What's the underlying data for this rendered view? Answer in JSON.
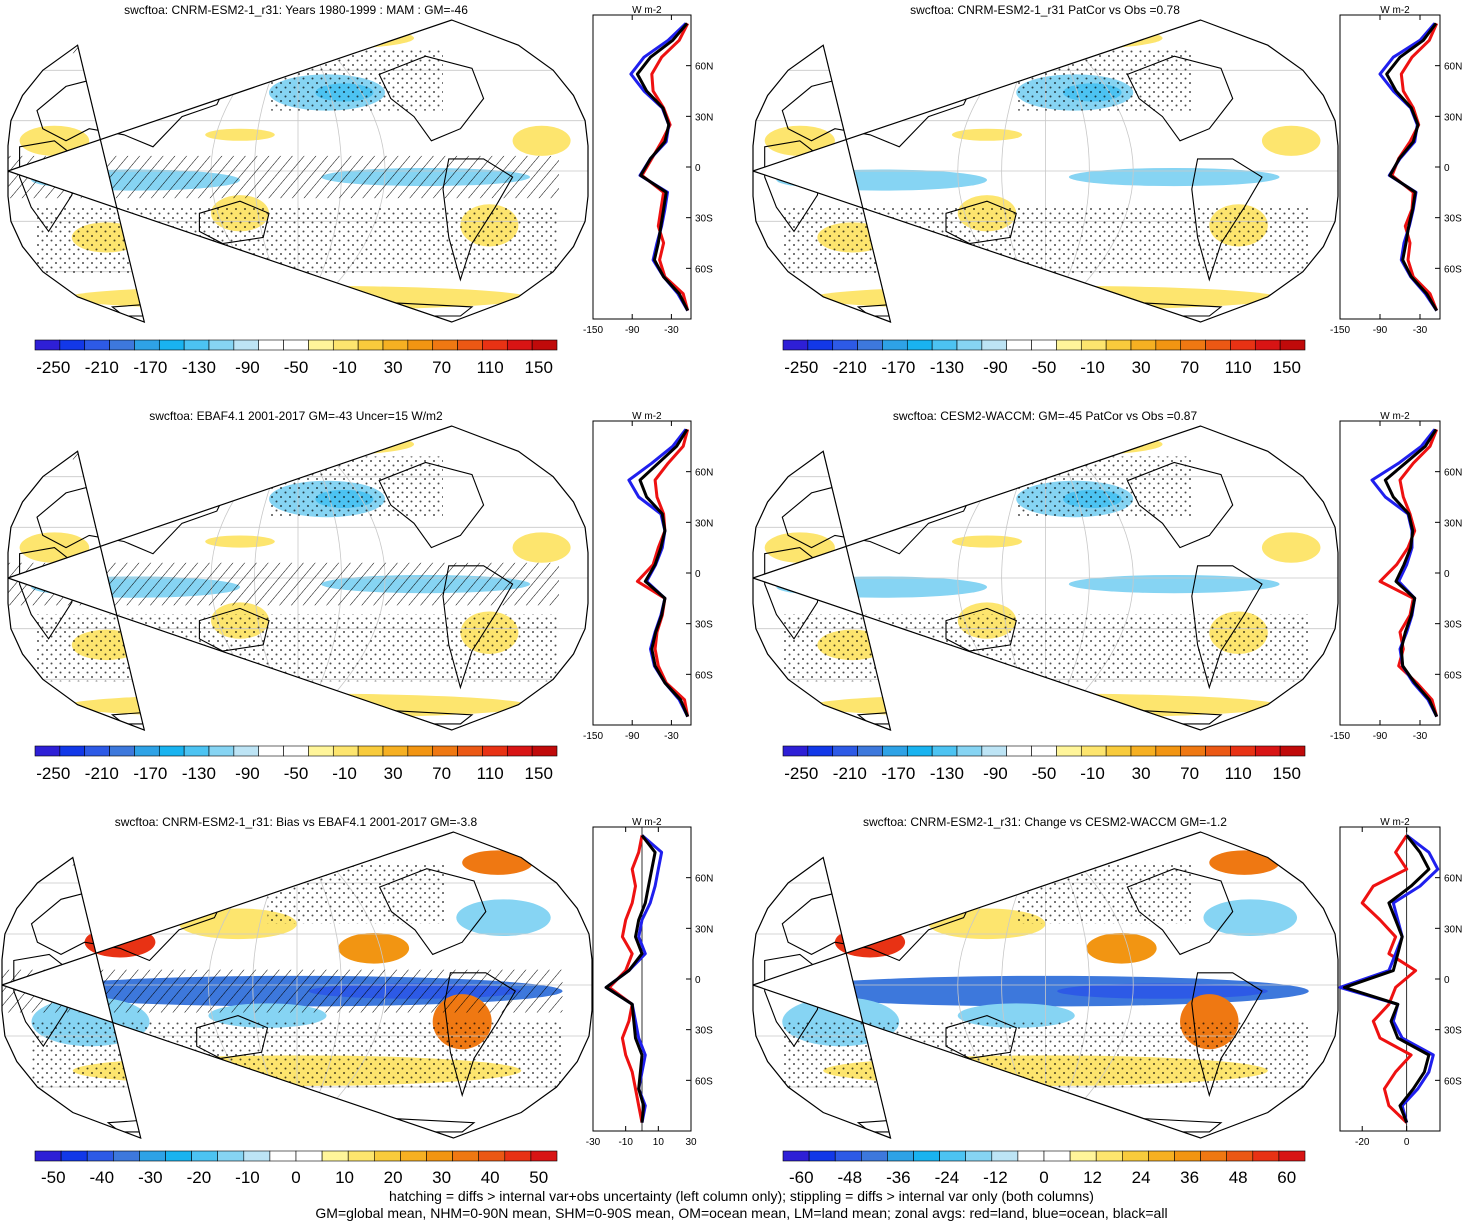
{
  "footer": {
    "line1": "hatching = diffs > internal var+obs uncertainty (left column only); stippling = diffs > internal var only (both columns)",
    "line2": "GM=global mean, NHM=0-90N mean, SHM=0-90S mean, OM=ocean mean, LM=land mean; zonal avgs: red=land, blue=ocean, black=all"
  },
  "colors": {
    "land": "#ee1111",
    "ocean": "#1f1fee",
    "all": "#000000",
    "outline": "#000000"
  },
  "icons": [
    "contour-map-robinson",
    "hatching-pattern",
    "stippling-pattern"
  ],
  "chart_data": [
    {
      "id": "model",
      "type": "heatmap",
      "projection": "robinson",
      "title": "swcftoa: CNRM-ESM2-1_r31: Years 1980-1999 : MAM : GM=-46",
      "colorbar": {
        "labels": [
          "-250",
          "-210",
          "-170",
          "-130",
          "-90",
          "-50",
          "-10",
          "30",
          "70",
          "110",
          "150"
        ],
        "scheme": "abs"
      },
      "zonal": {
        "units": "W m-2",
        "xticks": [
          "-150",
          "-90",
          "-30"
        ],
        "xlim": [
          -150,
          0
        ],
        "yticks": [
          "60N",
          "30N",
          "0",
          "30S",
          "60S"
        ],
        "ylim": [
          -90,
          90
        ],
        "lat": [
          -85,
          -75,
          -65,
          -55,
          -45,
          -35,
          -25,
          -15,
          -5,
          5,
          15,
          25,
          35,
          45,
          55,
          65,
          75,
          85
        ],
        "series": [
          {
            "color": "red",
            "values": [
              -5,
              -12,
              -40,
              -48,
              -42,
              -50,
              -46,
              -42,
              -75,
              -60,
              -45,
              -32,
              -42,
              -58,
              -60,
              -45,
              -18,
              -5
            ]
          },
          {
            "color": "blue",
            "values": [
              -5,
              -20,
              -42,
              -58,
              -52,
              -45,
              -40,
              -36,
              -78,
              -62,
              -38,
              -34,
              -44,
              -72,
              -92,
              -72,
              -35,
              -8
            ]
          },
          {
            "color": "black",
            "values": [
              -5,
              -18,
              -42,
              -56,
              -50,
              -46,
              -42,
              -38,
              -77,
              -62,
              -40,
              -34,
              -43,
              -68,
              -82,
              -62,
              -28,
              -6
            ]
          }
        ]
      }
    },
    {
      "id": "model-patcor",
      "type": "heatmap",
      "projection": "robinson",
      "title": "swcftoa: CNRM-ESM2-1_r31 PatCor vs Obs =0.78",
      "colorbar": {
        "labels": [
          "-250",
          "-210",
          "-170",
          "-130",
          "-90",
          "-50",
          "-10",
          "30",
          "70",
          "110",
          "150"
        ],
        "scheme": "abs"
      },
      "zonal": {
        "units": "W m-2",
        "xticks": [
          "-150",
          "-90",
          "-30"
        ],
        "xlim": [
          -150,
          0
        ],
        "yticks": [
          "60N",
          "30N",
          "0",
          "30S",
          "60S"
        ],
        "ylim": [
          -90,
          90
        ],
        "lat": [
          -85,
          -75,
          -65,
          -55,
          -45,
          -35,
          -25,
          -15,
          -5,
          5,
          15,
          25,
          35,
          45,
          55,
          65,
          75,
          85
        ],
        "series": [
          {
            "color": "red",
            "values": [
              -5,
              -15,
              -40,
              -48,
              -45,
              -52,
              -42,
              -40,
              -72,
              -62,
              -45,
              -32,
              -40,
              -55,
              -58,
              -42,
              -16,
              -5
            ]
          },
          {
            "color": "blue",
            "values": [
              -5,
              -22,
              -44,
              -58,
              -54,
              -46,
              -40,
              -36,
              -76,
              -60,
              -38,
              -34,
              -44,
              -70,
              -90,
              -70,
              -30,
              -8
            ]
          },
          {
            "color": "black",
            "values": [
              -5,
              -20,
              -43,
              -56,
              -51,
              -47,
              -41,
              -37,
              -75,
              -61,
              -40,
              -33,
              -43,
              -66,
              -80,
              -60,
              -25,
              -6
            ]
          }
        ]
      }
    },
    {
      "id": "obs",
      "type": "heatmap",
      "projection": "robinson",
      "title": "swcftoa: EBAF4.1 2001-2017 GM=-43 Uncer=15 W/m2",
      "colorbar": {
        "labels": [
          "-250",
          "-210",
          "-170",
          "-130",
          "-90",
          "-50",
          "-10",
          "30",
          "70",
          "110",
          "150"
        ],
        "scheme": "abs"
      },
      "zonal": {
        "units": "W m-2",
        "xticks": [
          "-150",
          "-90",
          "-30"
        ],
        "xlim": [
          -150,
          0
        ],
        "yticks": [
          "60N",
          "30N",
          "0",
          "30S",
          "60S"
        ],
        "ylim": [
          -90,
          90
        ],
        "lat": [
          -85,
          -75,
          -65,
          -55,
          -45,
          -35,
          -25,
          -15,
          -5,
          5,
          15,
          25,
          35,
          45,
          55,
          65,
          75,
          85
        ],
        "series": [
          {
            "color": "red",
            "values": [
              -5,
              -10,
              -38,
              -50,
              -55,
              -52,
              -44,
              -40,
              -82,
              -58,
              -50,
              -40,
              -42,
              -52,
              -55,
              -35,
              -12,
              -5
            ]
          },
          {
            "color": "blue",
            "values": [
              -5,
              -18,
              -40,
              -56,
              -62,
              -55,
              -46,
              -40,
              -68,
              -54,
              -44,
              -40,
              -46,
              -80,
              -95,
              -60,
              -28,
              -8
            ]
          },
          {
            "color": "black",
            "values": [
              -5,
              -16,
              -40,
              -55,
              -60,
              -54,
              -45,
              -40,
              -70,
              -55,
              -46,
              -40,
              -44,
              -68,
              -78,
              -50,
              -22,
              -6
            ]
          }
        ]
      }
    },
    {
      "id": "ref-model",
      "type": "heatmap",
      "projection": "robinson",
      "title": "swcftoa: CESM2-WACCM: GM=-45 PatCor vs Obs =0.87",
      "colorbar": {
        "labels": [
          "-250",
          "-210",
          "-170",
          "-130",
          "-90",
          "-50",
          "-10",
          "30",
          "70",
          "110",
          "150"
        ],
        "scheme": "abs"
      },
      "zonal": {
        "units": "W m-2",
        "xticks": [
          "-150",
          "-90",
          "-30"
        ],
        "xlim": [
          -150,
          0
        ],
        "yticks": [
          "60N",
          "30N",
          "0",
          "30S",
          "60S"
        ],
        "ylim": [
          -90,
          90
        ],
        "lat": [
          -85,
          -75,
          -65,
          -55,
          -45,
          -35,
          -25,
          -15,
          -5,
          5,
          15,
          25,
          35,
          45,
          55,
          65,
          75,
          85
        ],
        "series": [
          {
            "color": "red",
            "values": [
              -5,
              -12,
              -35,
              -62,
              -55,
              -60,
              -45,
              -40,
              -90,
              -65,
              -48,
              -38,
              -45,
              -55,
              -60,
              -40,
              -15,
              -5
            ]
          },
          {
            "color": "blue",
            "values": [
              -5,
              -18,
              -40,
              -56,
              -60,
              -50,
              -42,
              -38,
              -62,
              -50,
              -42,
              -42,
              -48,
              -82,
              -102,
              -62,
              -28,
              -8
            ]
          },
          {
            "color": "black",
            "values": [
              -5,
              -16,
              -38,
              -56,
              -58,
              -52,
              -43,
              -38,
              -66,
              -54,
              -44,
              -41,
              -47,
              -70,
              -82,
              -52,
              -22,
              -6
            ]
          }
        ]
      }
    },
    {
      "id": "bias",
      "type": "heatmap",
      "projection": "robinson",
      "title": "swcftoa: CNRM-ESM2-1_r31: Bias vs EBAF4.1 2001-2017 GM=-3.8",
      "colorbar": {
        "labels": [
          "-50",
          "-40",
          "-30",
          "-20",
          "-10",
          "0",
          "10",
          "20",
          "30",
          "40",
          "50"
        ],
        "scheme": "diff"
      },
      "zonal": {
        "units": "W m-2",
        "xticks": [
          "-30",
          "-10",
          "10",
          "30"
        ],
        "xlim": [
          -30,
          30
        ],
        "yticks": [
          "60N",
          "30N",
          "0",
          "30S",
          "60S"
        ],
        "ylim": [
          -90,
          90
        ],
        "lat": [
          -85,
          -75,
          -65,
          -55,
          -45,
          -35,
          -25,
          -15,
          -5,
          5,
          15,
          25,
          35,
          45,
          55,
          65,
          75,
          85
        ],
        "series": [
          {
            "color": "red",
            "values": [
              0,
              -2,
              -4,
              -6,
              -10,
              -12,
              -8,
              -6,
              -20,
              -10,
              -6,
              -12,
              -10,
              -6,
              -4,
              -6,
              -2,
              0
            ]
          },
          {
            "color": "blue",
            "values": [
              0,
              2,
              -2,
              0,
              2,
              -2,
              -4,
              -6,
              -22,
              -8,
              2,
              -2,
              0,
              5,
              8,
              10,
              12,
              0
            ]
          },
          {
            "color": "black",
            "values": [
              0,
              1,
              -2,
              -1,
              0,
              -4,
              -5,
              -6,
              -22,
              -8,
              0,
              -4,
              -2,
              2,
              4,
              6,
              8,
              0
            ]
          }
        ]
      }
    },
    {
      "id": "change",
      "type": "heatmap",
      "projection": "robinson",
      "title": "swcftoa: CNRM-ESM2-1_r31: Change vs CESM2-WACCM GM=-1.2",
      "colorbar": {
        "labels": [
          "-60",
          "-48",
          "-36",
          "-24",
          "-12",
          "0",
          "12",
          "24",
          "36",
          "48",
          "60"
        ],
        "scheme": "diff"
      },
      "zonal": {
        "units": "W m-2",
        "xticks": [
          "-20",
          "0"
        ],
        "xlim": [
          -30,
          15
        ],
        "yticks": [
          "60N",
          "30N",
          "0",
          "30S",
          "60S"
        ],
        "ylim": [
          -90,
          90
        ],
        "lat": [
          -85,
          -75,
          -65,
          -55,
          -45,
          -35,
          -25,
          -15,
          -5,
          5,
          15,
          25,
          35,
          45,
          55,
          65,
          75,
          85
        ],
        "series": [
          {
            "color": "red",
            "values": [
              0,
              -8,
              -10,
              -5,
              2,
              -12,
              -15,
              -8,
              -5,
              4,
              -8,
              -5,
              -12,
              -20,
              -15,
              0,
              -5,
              0
            ]
          },
          {
            "color": "blue",
            "values": [
              0,
              -2,
              5,
              10,
              12,
              -2,
              -6,
              -4,
              -30,
              -8,
              -5,
              -2,
              -4,
              -6,
              6,
              14,
              10,
              0
            ]
          },
          {
            "color": "black",
            "values": [
              0,
              -3,
              3,
              8,
              10,
              -4,
              -7,
              -4,
              -28,
              -6,
              -4,
              -2,
              -5,
              -8,
              2,
              10,
              6,
              0
            ]
          }
        ]
      }
    }
  ]
}
